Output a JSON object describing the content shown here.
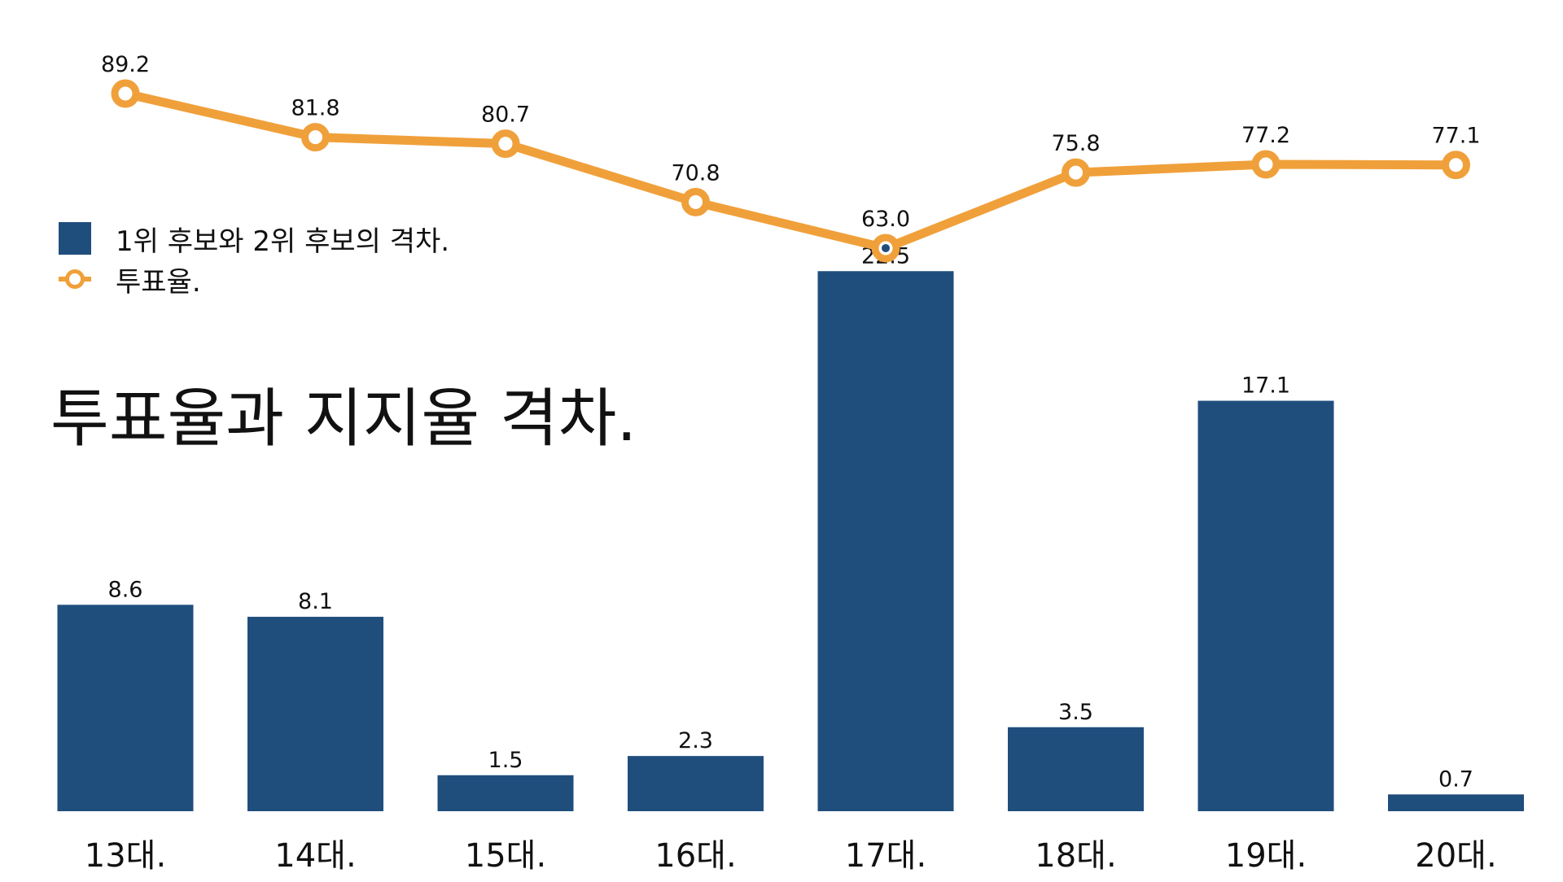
{
  "chart_data": {
    "type": "bar+line",
    "title": "투표율과 지지율 격차.",
    "categories": [
      "13대.",
      "14대.",
      "15대.",
      "16대.",
      "17대.",
      "18대.",
      "19대.",
      "20대."
    ],
    "series": [
      {
        "name": "1위 후보와 2위 후보의 격차.",
        "type": "bar",
        "values": [
          8.6,
          8.1,
          1.5,
          2.3,
          22.5,
          3.5,
          17.1,
          0.7
        ],
        "labels": [
          "8.6",
          "8.1",
          "1.5",
          "2.3",
          "22.5",
          "3.5",
          "17.1",
          "0.7"
        ]
      },
      {
        "name": "투표율.",
        "type": "line",
        "values": [
          89.2,
          81.8,
          80.7,
          70.8,
          63.0,
          75.8,
          77.2,
          77.1
        ],
        "labels": [
          "89.2",
          "81.8",
          "80.7",
          "70.8",
          "63.0",
          "75.8",
          "77.2",
          "77.1"
        ]
      }
    ],
    "legend_position": "left",
    "grid": false,
    "colors": {
      "bar": "#1f4e7d",
      "line": "#f0a03a"
    }
  }
}
